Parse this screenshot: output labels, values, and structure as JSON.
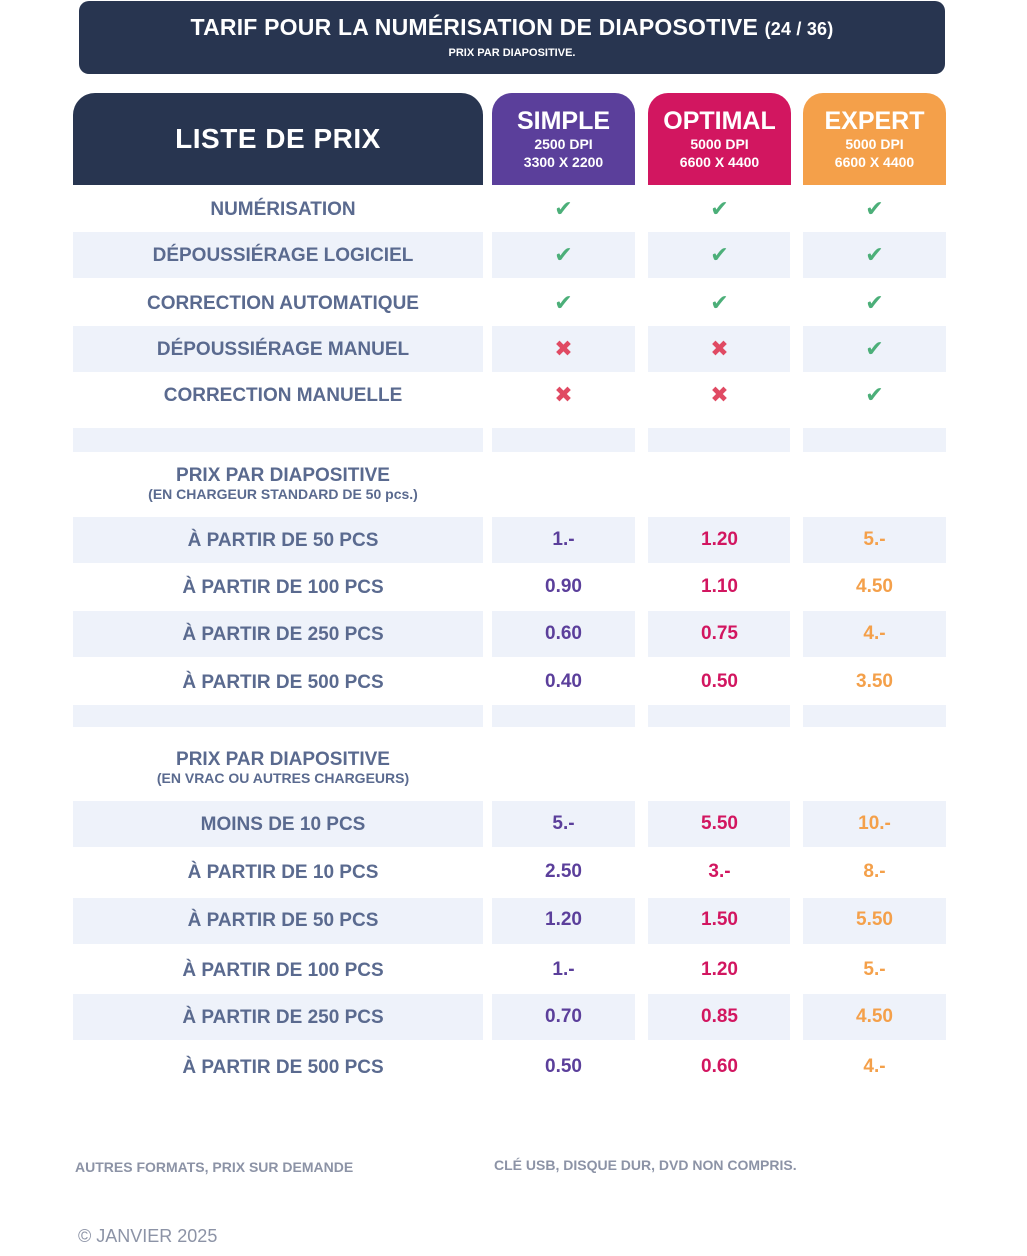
{
  "banner": {
    "title": "TARIF POUR LA NUMÉRISATION DE DIAPOSOTIVE",
    "title_suffix": "(24 / 36)",
    "subtitle": "PRIX PAR DIAPOSITIVE."
  },
  "header": {
    "main": "LISTE DE PRIX",
    "simple": {
      "name": "SIMPLE",
      "dpi": "2500 DPI",
      "res": "3300 X 2200",
      "color": "#5b3f9b"
    },
    "optimal": {
      "name": "OPTIMAL",
      "dpi": "5000 DPI",
      "res": "6600 X 4400",
      "color": "#d21660"
    },
    "expert": {
      "name": "EXPERT",
      "dpi": "5000 DPI",
      "res": "6600 X 4400",
      "color": "#f4a04a"
    }
  },
  "features": [
    {
      "label": "NUMÉRISATION",
      "simple": "✔",
      "optimal": "✔",
      "expert": "✔"
    },
    {
      "label": "DÉPOUSSIÉRAGE  LOGICIEL",
      "simple": "✔",
      "optimal": "✔",
      "expert": "✔"
    },
    {
      "label": "CORRECTION AUTOMATIQUE",
      "simple": "✔",
      "optimal": "✔",
      "expert": "✔"
    },
    {
      "label": "DÉPOUSSIÉRAGE MANUEL",
      "simple": "✖",
      "optimal": "✖",
      "expert": "✔"
    },
    {
      "label": "CORRECTION MANUELLE",
      "simple": "✖",
      "optimal": "✖",
      "expert": "✔"
    }
  ],
  "section1": {
    "title": "PRIX PAR DIAPOSITIVE",
    "subtitle": "(EN CHARGEUR STANDARD DE 50 pcs.)",
    "rows": [
      {
        "label": "À PARTIR DE 50 PCS",
        "simple": "1.-",
        "optimal": "1.20",
        "expert": "5.-"
      },
      {
        "label": "À PARTIR DE 100 PCS",
        "simple": "0.90",
        "optimal": "1.10",
        "expert": "4.50"
      },
      {
        "label": "À PARTIR DE 250 PCS",
        "simple": "0.60",
        "optimal": "0.75",
        "expert": "4.-"
      },
      {
        "label": "À PARTIR DE 500 PCS",
        "simple": "0.40",
        "optimal": "0.50",
        "expert": "3.50"
      }
    ]
  },
  "section2": {
    "title": "PRIX PAR DIAPOSITIVE",
    "subtitle": "(EN VRAC OU AUTRES CHARGEURS)",
    "rows": [
      {
        "label": "MOINS DE 10 PCS",
        "simple": "5.-",
        "optimal": "5.50",
        "expert": "10.-"
      },
      {
        "label": "À PARTIR DE 10 PCS",
        "simple": "2.50",
        "optimal": "3.-",
        "expert": "8.-"
      },
      {
        "label": "À PARTIR DE 50 PCS",
        "simple": "1.20",
        "optimal": "1.50",
        "expert": "5.50"
      },
      {
        "label": "À PARTIR DE 100 PCS",
        "simple": "1.-",
        "optimal": "1.20",
        "expert": "5.-"
      },
      {
        "label": "À PARTIR DE 250 PCS",
        "simple": "0.70",
        "optimal": "0.85",
        "expert": "4.50"
      },
      {
        "label": "À PARTIR DE 500 PCS",
        "simple": "0.50",
        "optimal": "0.60",
        "expert": "4.-"
      }
    ]
  },
  "footer": {
    "left": "AUTRES FORMATS, PRIX SUR DEMANDE",
    "right": "CLÉ USB, DISQUE DUR, DVD NON COMPRIS.",
    "copyright": "© JANVIER 2025"
  }
}
